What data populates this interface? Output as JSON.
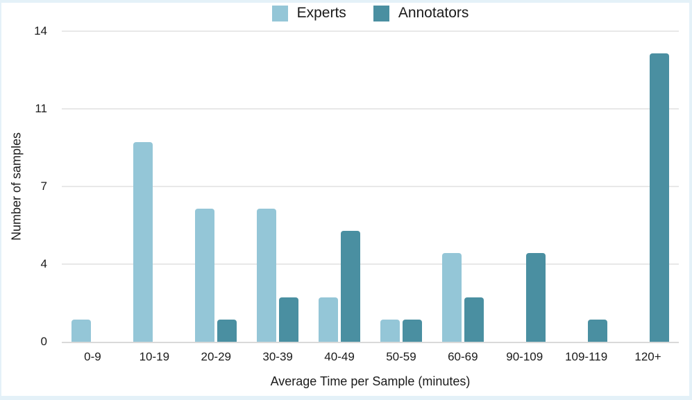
{
  "chart_data": {
    "type": "bar",
    "title": "",
    "categories": [
      "0-9",
      "10-19",
      "20-29",
      "30-39",
      "40-49",
      "50-59",
      "60-69",
      "90-109",
      "109-119",
      "120+"
    ],
    "series": [
      {
        "name": "Experts",
        "color": "#94c6d7",
        "values": [
          1,
          9,
          6,
          6,
          2,
          1,
          4,
          0,
          0,
          0
        ]
      },
      {
        "name": "Annotators",
        "color": "#4a8fa1",
        "values": [
          0,
          0,
          1,
          2,
          5,
          1,
          2,
          4,
          1,
          13
        ]
      }
    ],
    "xlabel": "Average Time per Sample (minutes)",
    "ylabel": "Number of samples",
    "ylim": [
      0,
      14
    ],
    "yticks": [
      {
        "value": 0,
        "label": "0"
      },
      {
        "value": 3.5,
        "label": "4"
      },
      {
        "value": 7,
        "label": "7"
      },
      {
        "value": 10.5,
        "label": "11"
      },
      {
        "value": 14,
        "label": "14"
      }
    ],
    "grid": true,
    "legend_position": "top-center"
  },
  "colors": {
    "frame_border": "#e4f1f8",
    "background": "#ffffff",
    "gridline": "#e8e8e8",
    "axis_line": "#d9d9d9",
    "text": "#1a1a1a",
    "experts": "#94c6d7",
    "annotators": "#4a8fa1"
  }
}
